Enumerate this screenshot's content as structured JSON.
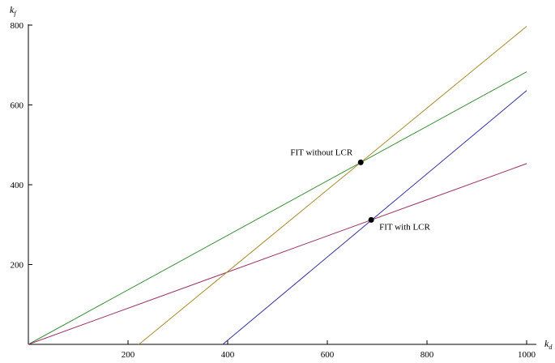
{
  "chart_data": {
    "type": "line",
    "title": "",
    "xlabel": "k",
    "xlabel_sub": "d",
    "ylabel": "k",
    "ylabel_sub": "f",
    "xlim": [
      0,
      1000
    ],
    "ylim": [
      0,
      800
    ],
    "xticks": [
      200,
      400,
      600,
      800,
      1000
    ],
    "yticks": [
      200,
      400,
      600,
      800
    ],
    "grid": false,
    "legend": "none",
    "series": [
      {
        "color": "#3b8f3b",
        "x": [
          0,
          1000
        ],
        "y": [
          0,
          683
        ]
      },
      {
        "color": "#9a2f6a",
        "x": [
          0,
          1000
        ],
        "y": [
          0,
          453
        ]
      },
      {
        "color": "#a88a2a",
        "x": [
          222,
          1000
        ],
        "y": [
          0,
          797
        ]
      },
      {
        "color": "#3030a0",
        "x": [
          390,
          1000
        ],
        "y": [
          0,
          636
        ]
      }
    ],
    "points": [
      {
        "label": "FIT without LCR",
        "x": 667,
        "y": 456,
        "label_anchor": "left"
      },
      {
        "label": "FIT with LCR",
        "x": 688,
        "y": 312,
        "label_anchor": "right"
      }
    ]
  }
}
